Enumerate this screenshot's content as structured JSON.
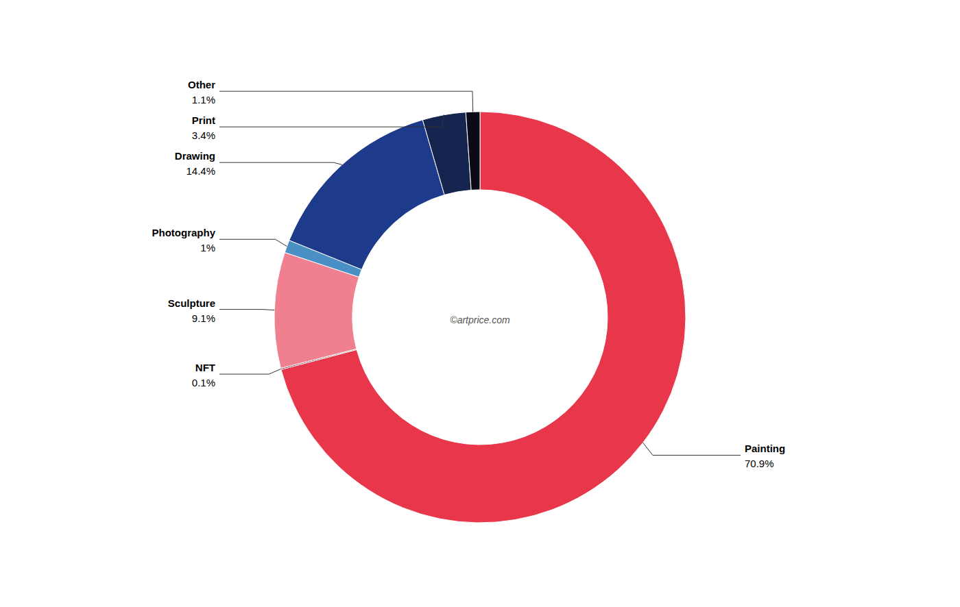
{
  "chart_data": {
    "type": "donut",
    "categories": [
      "Painting",
      "NFT",
      "Sculpture",
      "Photography",
      "Drawing",
      "Print",
      "Other"
    ],
    "values": [
      70.9,
      0.1,
      9.1,
      1.0,
      14.4,
      3.4,
      1.1
    ],
    "value_labels": [
      "70.9%",
      "0.1%",
      "9.1%",
      "1%",
      "14.4%",
      "3.4%",
      "1.1%"
    ],
    "colors": [
      "#E8374A",
      "#7A1020",
      "#F08090",
      "#4A90C4",
      "#1E3A8A",
      "#152550",
      "#0A0A18"
    ],
    "data_labels": true,
    "annotations": [
      "©artprice.com"
    ]
  }
}
